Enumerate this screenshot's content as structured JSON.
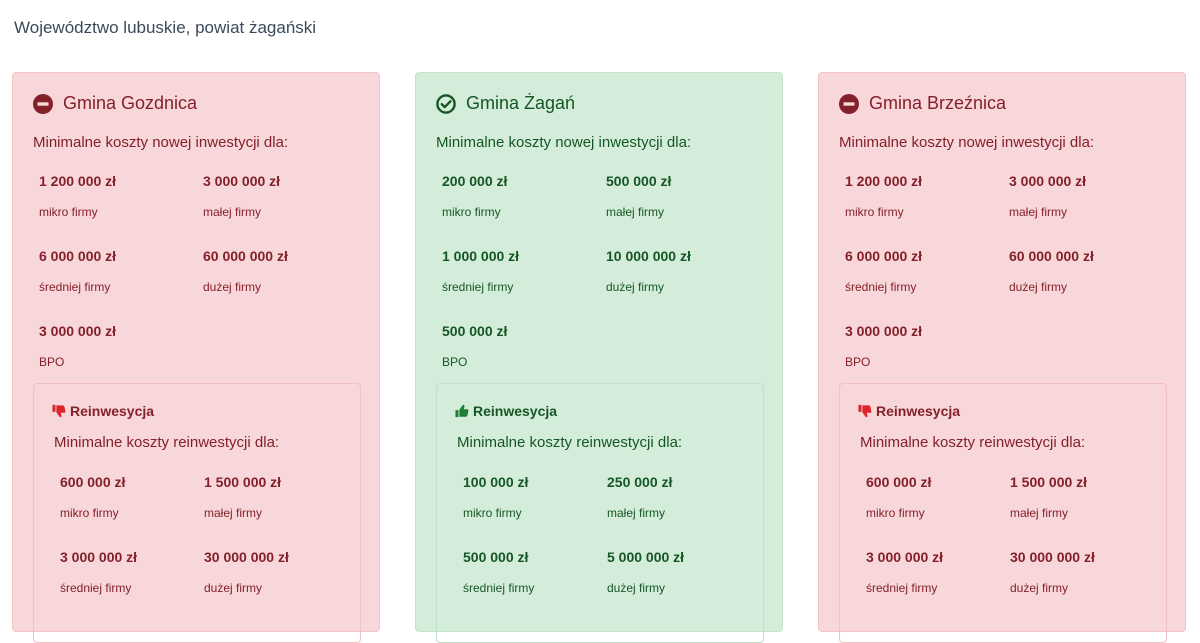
{
  "page": {
    "heading": "Województwo lubuskie, powiat żagański"
  },
  "colors": {
    "red_text": "#842029",
    "green_text": "#155724",
    "red_bg": "#f8d7da",
    "green_bg": "#d4edda"
  },
  "cards": [
    {
      "status": "rejected",
      "icon": "minus-circle-icon",
      "title": "Gmina Gozdnica",
      "subtitle": "Minimalne koszty nowej inwestycji dla:",
      "costs": [
        {
          "amount": "1 200 000 zł",
          "label": "mikro firmy"
        },
        {
          "amount": "3 000 000 zł",
          "label": "małej firmy"
        },
        {
          "amount": "6 000 000 zł",
          "label": "średniej firmy"
        },
        {
          "amount": "60 000 000 zł",
          "label": "dużej firmy"
        },
        {
          "amount": "3 000 000 zł",
          "label": "BPO"
        }
      ],
      "reinvest": {
        "icon": "thumbs-down-icon",
        "title": "Reinwesycja",
        "subtitle": "Minimalne koszty reinwestycji dla:",
        "costs": [
          {
            "amount": "600 000 zł",
            "label": "mikro firmy"
          },
          {
            "amount": "1 500 000 zł",
            "label": "małej firmy"
          },
          {
            "amount": "3 000 000 zł",
            "label": "średniej firmy"
          },
          {
            "amount": "30 000 000 zł",
            "label": "dużej firmy"
          }
        ]
      }
    },
    {
      "status": "accepted",
      "icon": "check-circle-icon",
      "title": "Gmina Żagań",
      "subtitle": "Minimalne koszty nowej inwestycji dla:",
      "costs": [
        {
          "amount": "200 000 zł",
          "label": "mikro firmy"
        },
        {
          "amount": "500 000 zł",
          "label": "małej firmy"
        },
        {
          "amount": "1 000 000 zł",
          "label": "średniej firmy"
        },
        {
          "amount": "10 000 000 zł",
          "label": "dużej firmy"
        },
        {
          "amount": "500 000 zł",
          "label": "BPO"
        }
      ],
      "reinvest": {
        "icon": "thumbs-up-icon",
        "title": "Reinwesycja",
        "subtitle": "Minimalne koszty reinwestycji dla:",
        "costs": [
          {
            "amount": "100 000 zł",
            "label": "mikro firmy"
          },
          {
            "amount": "250 000 zł",
            "label": "małej firmy"
          },
          {
            "amount": "500 000 zł",
            "label": "średniej firmy"
          },
          {
            "amount": "5 000 000 zł",
            "label": "dużej firmy"
          }
        ]
      }
    },
    {
      "status": "rejected",
      "icon": "minus-circle-icon",
      "title": "Gmina Brzeźnica",
      "subtitle": "Minimalne koszty nowej inwestycji dla:",
      "costs": [
        {
          "amount": "1 200 000 zł",
          "label": "mikro firmy"
        },
        {
          "amount": "3 000 000 zł",
          "label": "małej firmy"
        },
        {
          "amount": "6 000 000 zł",
          "label": "średniej firmy"
        },
        {
          "amount": "60 000 000 zł",
          "label": "dużej firmy"
        },
        {
          "amount": "3 000 000 zł",
          "label": "BPO"
        }
      ],
      "reinvest": {
        "icon": "thumbs-down-icon",
        "title": "Reinwesycja",
        "subtitle": "Minimalne koszty reinwestycji dla:",
        "costs": [
          {
            "amount": "600 000 zł",
            "label": "mikro firmy"
          },
          {
            "amount": "1 500 000 zł",
            "label": "małej firmy"
          },
          {
            "amount": "3 000 000 zł",
            "label": "średniej firmy"
          },
          {
            "amount": "30 000 000 zł",
            "label": "dużej firmy"
          }
        ]
      }
    }
  ]
}
